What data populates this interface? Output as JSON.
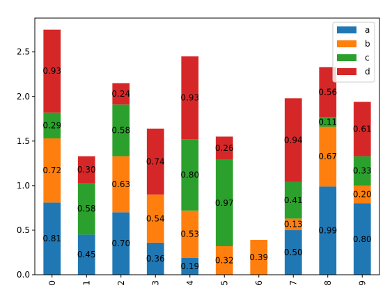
{
  "chart_data": {
    "type": "bar",
    "stacked": true,
    "categories": [
      "0",
      "1",
      "2",
      "3",
      "4",
      "5",
      "6",
      "7",
      "8",
      "9"
    ],
    "series": [
      {
        "name": "a",
        "color": "#1f77b4",
        "values": [
          0.81,
          0.45,
          0.7,
          0.36,
          0.19,
          0.0,
          0.0,
          0.5,
          0.99,
          0.8
        ]
      },
      {
        "name": "b",
        "color": "#ff7f0e",
        "values": [
          0.72,
          0.0,
          0.63,
          0.54,
          0.53,
          0.32,
          0.39,
          0.13,
          0.67,
          0.2
        ]
      },
      {
        "name": "c",
        "color": "#2ca02c",
        "values": [
          0.29,
          0.58,
          0.58,
          0.0,
          0.8,
          0.97,
          0.0,
          0.41,
          0.11,
          0.33
        ]
      },
      {
        "name": "d",
        "color": "#d62728",
        "values": [
          0.93,
          0.3,
          0.24,
          0.74,
          0.93,
          0.26,
          0.0,
          0.94,
          0.56,
          0.61
        ]
      }
    ],
    "yticks": [
      "0.0",
      "0.5",
      "1.0",
      "1.5",
      "2.0",
      "2.5"
    ],
    "ylim": [
      0,
      2.88
    ],
    "xlabel": "",
    "ylabel": "",
    "title": "",
    "grid": false,
    "legend": "top-right"
  }
}
